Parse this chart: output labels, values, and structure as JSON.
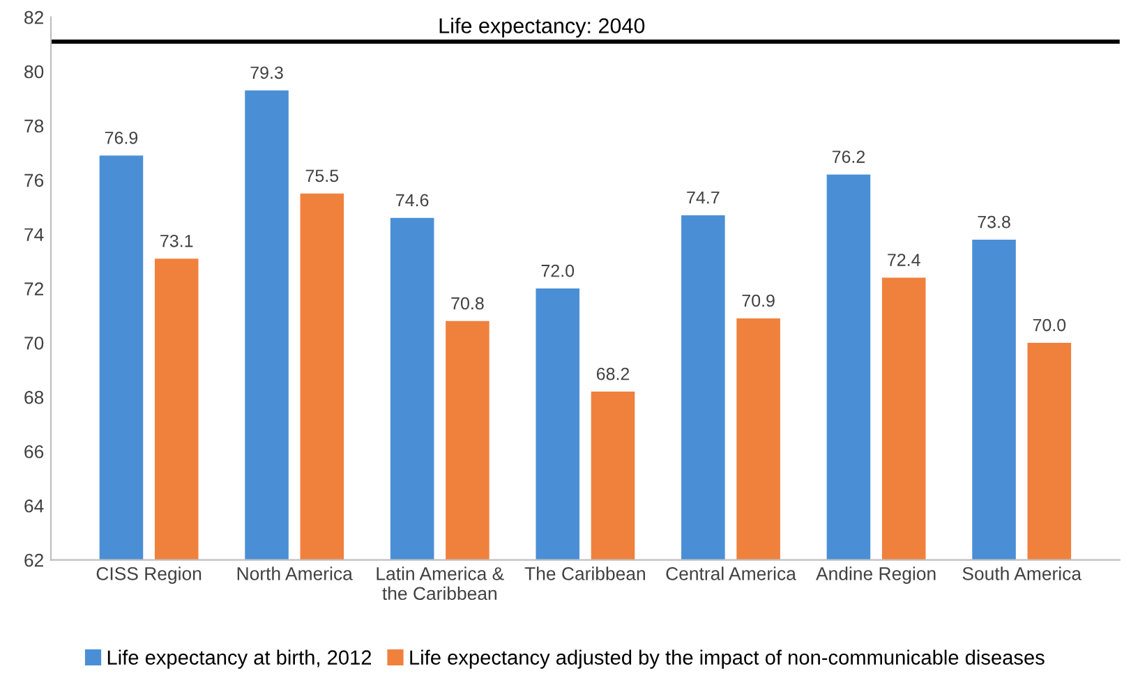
{
  "chart_data": {
    "type": "bar",
    "categories": [
      "CISS Region",
      "North America",
      "Latin America &\nthe Caribbean",
      "The Caribbean",
      "Central America",
      "Andine Region",
      "South America"
    ],
    "series": [
      {
        "name": "Life expectancy at birth, 2012",
        "color": "#4a8fd6",
        "values": [
          76.9,
          79.3,
          74.6,
          72.0,
          74.7,
          76.2,
          73.8
        ]
      },
      {
        "name": "Life expectancy adjusted by the impact of non-communicable diseases",
        "color": "#f0813d",
        "values": [
          73.1,
          75.5,
          70.8,
          68.2,
          70.9,
          72.4,
          70.0
        ]
      }
    ],
    "value_labels": [
      [
        "76.9",
        "79.3",
        "74.6",
        "72.0",
        "74.7",
        "76.2",
        "73.8"
      ],
      [
        "73.1",
        "75.5",
        "70.8",
        "68.2",
        "70.9",
        "72.4",
        "70.0"
      ]
    ],
    "ylim": [
      62,
      82
    ],
    "yticks": [
      62,
      64,
      66,
      68,
      70,
      72,
      74,
      76,
      78,
      80,
      82
    ],
    "ref_lines": [
      {
        "axis": "y",
        "value": 81.1,
        "color": "#000000"
      }
    ],
    "annotations": [
      {
        "text": "Life expectancy: 2040",
        "x": "The Caribbean",
        "y": 81.1
      }
    ],
    "grid": false,
    "legend": "bottom"
  }
}
